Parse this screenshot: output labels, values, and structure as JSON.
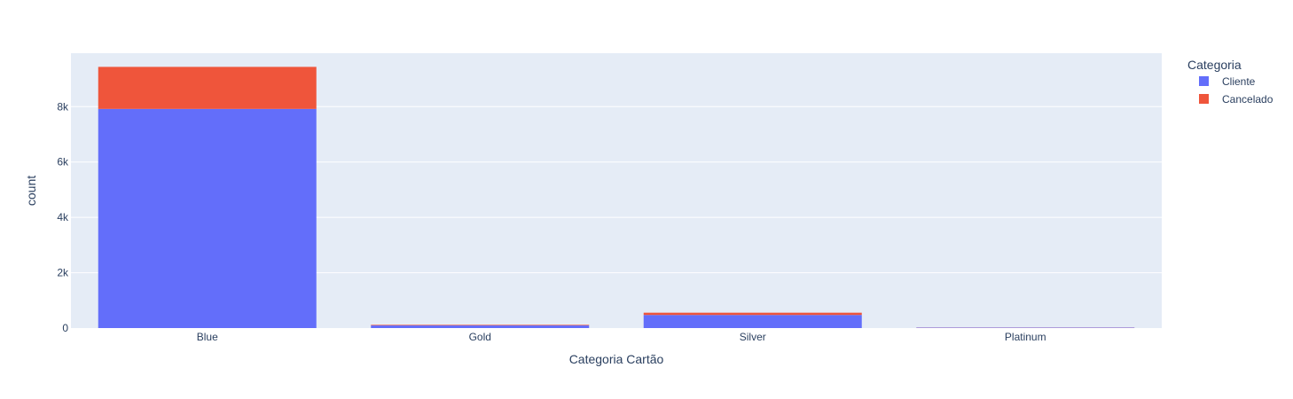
{
  "chart_data": {
    "type": "bar",
    "barmode": "stack",
    "categories": [
      "Blue",
      "Gold",
      "Silver",
      "Platinum"
    ],
    "series": [
      {
        "name": "Cliente",
        "color": "#636efa",
        "values": [
          7917,
          95,
          473,
          15
        ]
      },
      {
        "name": "Cancelado",
        "color": "#ef553b",
        "values": [
          1519,
          21,
          82,
          5
        ]
      }
    ],
    "xlabel": "Categoria Cartão",
    "ylabel": "count",
    "ylim": [
      0,
      9930
    ],
    "yticks": [
      0,
      2000,
      4000,
      6000,
      8000
    ],
    "ytick_labels": [
      "0",
      "2k",
      "4k",
      "6k",
      "8k"
    ],
    "grid": true,
    "legend": {
      "title": "Categoria",
      "position": "top-right"
    },
    "plot_bg": "#e5ecf6"
  }
}
